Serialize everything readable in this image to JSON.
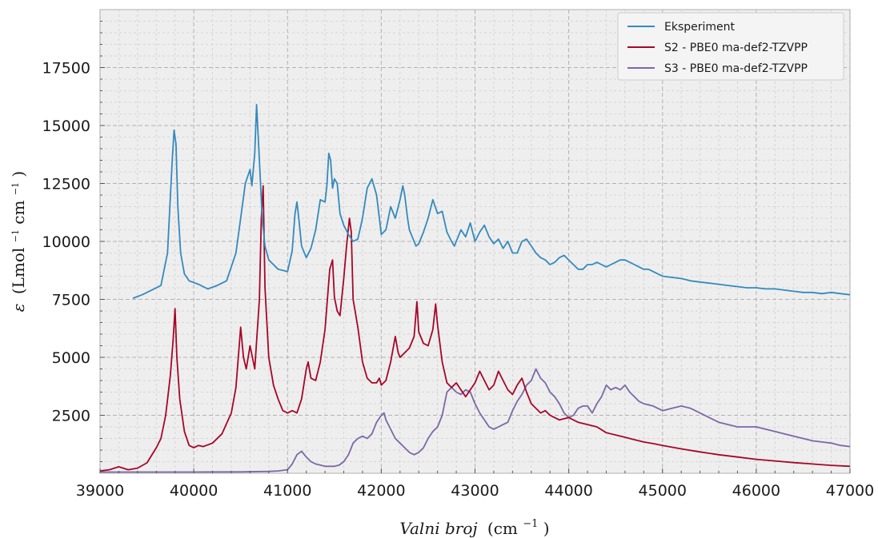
{
  "chart_data": {
    "type": "line",
    "xlabel_italic": "Valni broj",
    "xlabel_unit": "(cm",
    "xlabel_unit_exp": "−1",
    "xlabel_unit_close": ")",
    "ylabel_symbol": "ε",
    "ylabel_unit": "(Lmol",
    "ylabel_unit_exp1": "−1",
    "ylabel_unit_mid": "cm",
    "ylabel_unit_exp2": "−1",
    "ylabel_unit_close": ")",
    "xlim": [
      39000,
      47000
    ],
    "ylim": [
      0,
      20000
    ],
    "x_ticks": [
      39000,
      40000,
      41000,
      42000,
      43000,
      44000,
      45000,
      46000,
      47000
    ],
    "x_tick_labels": [
      "39000",
      "40000",
      "41000",
      "42000",
      "43000",
      "44000",
      "45000",
      "46000",
      "47000"
    ],
    "y_ticks": [
      2500,
      5000,
      7500,
      10000,
      12500,
      15000,
      17500
    ],
    "y_tick_labels": [
      "2500",
      "5000",
      "7500",
      "10000",
      "12500",
      "15000",
      "17500"
    ],
    "grid": "major and minor, dashed",
    "legend_position": "top-right",
    "series": [
      {
        "name": "Eksperiment",
        "color": "#348abd",
        "x": [
          39350,
          39450,
          39550,
          39650,
          39720,
          39770,
          39790,
          39810,
          39830,
          39860,
          39900,
          39950,
          40050,
          40150,
          40250,
          40350,
          40450,
          40500,
          40550,
          40600,
          40620,
          40650,
          40670,
          40700,
          40730,
          40760,
          40800,
          40900,
          41000,
          41050,
          41080,
          41100,
          41120,
          41150,
          41200,
          41250,
          41300,
          41350,
          41400,
          41420,
          41440,
          41460,
          41480,
          41500,
          41530,
          41560,
          41600,
          41650,
          41700,
          41750,
          41800,
          41850,
          41900,
          41950,
          41980,
          42000,
          42050,
          42100,
          42150,
          42200,
          42230,
          42250,
          42280,
          42300,
          42330,
          42370,
          42400,
          42450,
          42500,
          42550,
          42600,
          42650,
          42700,
          42750,
          42780,
          42820,
          42850,
          42900,
          42950,
          43000,
          43050,
          43100,
          43150,
          43200,
          43250,
          43300,
          43350,
          43400,
          43450,
          43500,
          43550,
          43600,
          43650,
          43700,
          43750,
          43800,
          43850,
          43900,
          43950,
          44000,
          44050,
          44100,
          44150,
          44200,
          44250,
          44300,
          44350,
          44400,
          44450,
          44500,
          44550,
          44600,
          44650,
          44700,
          44750,
          44800,
          44850,
          44900,
          44950,
          45000,
          45100,
          45200,
          45300,
          45400,
          45500,
          45600,
          45700,
          45800,
          45900,
          46000,
          46100,
          46200,
          46300,
          46400,
          46500,
          46600,
          46700,
          46800,
          46900,
          47000
        ],
        "y": [
          7550,
          7700,
          7900,
          8100,
          9500,
          13500,
          14800,
          14200,
          11500,
          9500,
          8600,
          8300,
          8150,
          7950,
          8100,
          8300,
          9500,
          11000,
          12500,
          13100,
          12400,
          13800,
          15900,
          13500,
          11000,
          9800,
          9200,
          8800,
          8700,
          9600,
          11200,
          11700,
          11000,
          9800,
          9300,
          9700,
          10500,
          11800,
          11700,
          12400,
          13800,
          13500,
          12300,
          12700,
          12500,
          11200,
          10700,
          10300,
          10000,
          10100,
          11000,
          12300,
          12700,
          12000,
          11000,
          10300,
          10500,
          11500,
          11000,
          11800,
          12400,
          12000,
          11000,
          10500,
          10200,
          9800,
          9900,
          10400,
          11000,
          11800,
          11200,
          11300,
          10400,
          10000,
          9800,
          10200,
          10500,
          10200,
          10800,
          10000,
          10400,
          10700,
          10200,
          9900,
          10100,
          9700,
          10000,
          9500,
          9500,
          10000,
          10100,
          9800,
          9500,
          9300,
          9200,
          9000,
          9100,
          9300,
          9400,
          9200,
          9000,
          8800,
          8800,
          9000,
          9000,
          9100,
          9000,
          8900,
          9000,
          9100,
          9200,
          9200,
          9100,
          9000,
          8900,
          8800,
          8800,
          8700,
          8600,
          8500,
          8450,
          8400,
          8300,
          8250,
          8200,
          8150,
          8100,
          8050,
          8000,
          8000,
          7950,
          7950,
          7900,
          7850,
          7800,
          7800,
          7750,
          7800,
          7750,
          7700
        ]
      },
      {
        "name": "S2 - PBE0 ma-def2-TZVPP",
        "color": "#a60628",
        "x": [
          39000,
          39100,
          39200,
          39300,
          39400,
          39500,
          39600,
          39650,
          39700,
          39750,
          39780,
          39800,
          39820,
          39850,
          39900,
          39950,
          40000,
          40050,
          40100,
          40200,
          40300,
          40400,
          40450,
          40500,
          40530,
          40560,
          40600,
          40650,
          40700,
          40720,
          40740,
          40760,
          40800,
          40850,
          40900,
          40950,
          41000,
          41050,
          41100,
          41150,
          41200,
          41220,
          41250,
          41300,
          41350,
          41400,
          41450,
          41480,
          41500,
          41530,
          41560,
          41600,
          41630,
          41660,
          41680,
          41700,
          41750,
          41800,
          41850,
          41900,
          41950,
          41980,
          42000,
          42050,
          42100,
          42150,
          42180,
          42200,
          42250,
          42300,
          42350,
          42380,
          42400,
          42450,
          42500,
          42550,
          42580,
          42600,
          42650,
          42700,
          42750,
          42800,
          42850,
          42900,
          42950,
          43000,
          43050,
          43100,
          43150,
          43200,
          43250,
          43300,
          43350,
          43400,
          43450,
          43500,
          43550,
          43600,
          43650,
          43700,
          43750,
          43800,
          43850,
          43900,
          44000,
          44100,
          44200,
          44300,
          44400,
          44500,
          44600,
          44700,
          44800,
          44900,
          45000,
          45200,
          45400,
          45600,
          45800,
          46000,
          46200,
          46400,
          46600,
          46800,
          47000
        ],
        "y": [
          100,
          150,
          280,
          150,
          220,
          450,
          1100,
          1500,
          2500,
          4200,
          5800,
          7100,
          5000,
          3200,
          1800,
          1200,
          1100,
          1200,
          1150,
          1300,
          1700,
          2600,
          3700,
          6300,
          5000,
          4500,
          5500,
          4500,
          7500,
          11000,
          12400,
          8000,
          5000,
          3800,
          3200,
          2700,
          2600,
          2700,
          2600,
          3200,
          4500,
          4800,
          4100,
          4000,
          4800,
          6200,
          8800,
          9200,
          7600,
          7000,
          6800,
          8400,
          9800,
          11000,
          10400,
          7500,
          6300,
          4800,
          4100,
          3900,
          3900,
          4100,
          3800,
          4000,
          4800,
          5900,
          5200,
          5000,
          5200,
          5400,
          5900,
          7400,
          6100,
          5600,
          5500,
          6200,
          7300,
          6400,
          4800,
          3900,
          3700,
          3900,
          3600,
          3300,
          3600,
          3900,
          4400,
          4000,
          3600,
          3800,
          4400,
          4000,
          3600,
          3400,
          3800,
          4100,
          3500,
          3000,
          2800,
          2600,
          2700,
          2500,
          2400,
          2300,
          2400,
          2200,
          2100,
          2000,
          1750,
          1650,
          1550,
          1450,
          1350,
          1280,
          1200,
          1050,
          920,
          800,
          700,
          600,
          530,
          460,
          400,
          340,
          300
        ]
      },
      {
        "name": "S3 - PBE0 ma-def2-TZVPP",
        "color": "#7a68a6",
        "x": [
          39000,
          39500,
          40000,
          40500,
          40800,
          40900,
          41000,
          41050,
          41100,
          41150,
          41200,
          41250,
          41300,
          41400,
          41500,
          41550,
          41600,
          41650,
          41700,
          41750,
          41800,
          41850,
          41900,
          41950,
          42000,
          42030,
          42050,
          42100,
          42150,
          42200,
          42250,
          42300,
          42350,
          42400,
          42450,
          42500,
          42550,
          42600,
          42650,
          42700,
          42750,
          42800,
          42850,
          42900,
          42950,
          43000,
          43050,
          43100,
          43150,
          43200,
          43250,
          43300,
          43350,
          43400,
          43450,
          43500,
          43550,
          43600,
          43650,
          43700,
          43750,
          43800,
          43850,
          43900,
          43950,
          44000,
          44050,
          44100,
          44150,
          44200,
          44250,
          44300,
          44350,
          44400,
          44450,
          44500,
          44550,
          44600,
          44650,
          44700,
          44750,
          44800,
          44900,
          45000,
          45100,
          45200,
          45300,
          45400,
          45500,
          45600,
          45700,
          45800,
          45900,
          46000,
          46100,
          46200,
          46300,
          46400,
          46500,
          46600,
          46700,
          46800,
          46900,
          47000
        ],
        "y": [
          50,
          50,
          50,
          60,
          80,
          100,
          150,
          400,
          800,
          950,
          700,
          500,
          400,
          300,
          300,
          350,
          500,
          800,
          1300,
          1500,
          1600,
          1500,
          1700,
          2200,
          2500,
          2600,
          2300,
          1900,
          1500,
          1300,
          1100,
          900,
          800,
          900,
          1100,
          1500,
          1800,
          2000,
          2500,
          3500,
          3700,
          3500,
          3400,
          3600,
          3500,
          3000,
          2600,
          2300,
          2000,
          1900,
          2000,
          2100,
          2200,
          2700,
          3100,
          3400,
          3800,
          4000,
          4500,
          4100,
          3900,
          3500,
          3300,
          3000,
          2600,
          2400,
          2500,
          2800,
          2900,
          2900,
          2600,
          3000,
          3300,
          3800,
          3600,
          3700,
          3600,
          3800,
          3500,
          3300,
          3100,
          3000,
          2900,
          2700,
          2800,
          2900,
          2800,
          2600,
          2400,
          2200,
          2100,
          2000,
          2000,
          2000,
          1900,
          1800,
          1700,
          1600,
          1500,
          1400,
          1350,
          1300,
          1200,
          1150
        ]
      }
    ]
  }
}
